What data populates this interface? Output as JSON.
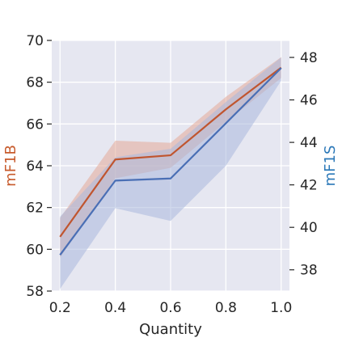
{
  "chart_data": {
    "type": "line",
    "x": [
      0.2,
      0.4,
      0.6,
      0.8,
      1.0
    ],
    "xlabel": "Quantity",
    "xlim": [
      0.17,
      1.03
    ],
    "xticks": [
      "0.2",
      "0.4",
      "0.6",
      "0.8",
      "1.0"
    ],
    "grid": true,
    "background_color": "#e6e7f1",
    "left_axis": {
      "label": "mF1B",
      "label_color": "#c75a2b",
      "ylim": [
        58,
        70
      ],
      "yticks": [
        "58",
        "60",
        "62",
        "64",
        "66",
        "68",
        "70"
      ]
    },
    "right_axis": {
      "label": "mF1S",
      "label_color": "#2b78b8",
      "ylim": [
        37,
        48.8
      ],
      "yticks": [
        "38",
        "40",
        "42",
        "44",
        "46",
        "48"
      ]
    },
    "series": [
      {
        "name": "mF1B",
        "axis": "left",
        "color": "#c0552f",
        "band_color": "#e3aa98",
        "values": [
          60.6,
          64.3,
          64.5,
          66.7,
          68.7
        ],
        "lower": [
          59.6,
          63.4,
          63.9,
          66.1,
          68.2
        ],
        "upper": [
          61.5,
          65.2,
          65.1,
          67.3,
          69.2
        ]
      },
      {
        "name": "mF1S",
        "axis": "right",
        "color": "#4a6fb5",
        "band_color": "#aab8dc",
        "values": [
          38.7,
          42.2,
          42.3,
          44.9,
          47.5
        ],
        "lower": [
          37.1,
          40.9,
          40.3,
          42.9,
          46.9
        ],
        "upper": [
          40.5,
          43.3,
          43.7,
          45.9,
          48.0
        ]
      }
    ]
  }
}
